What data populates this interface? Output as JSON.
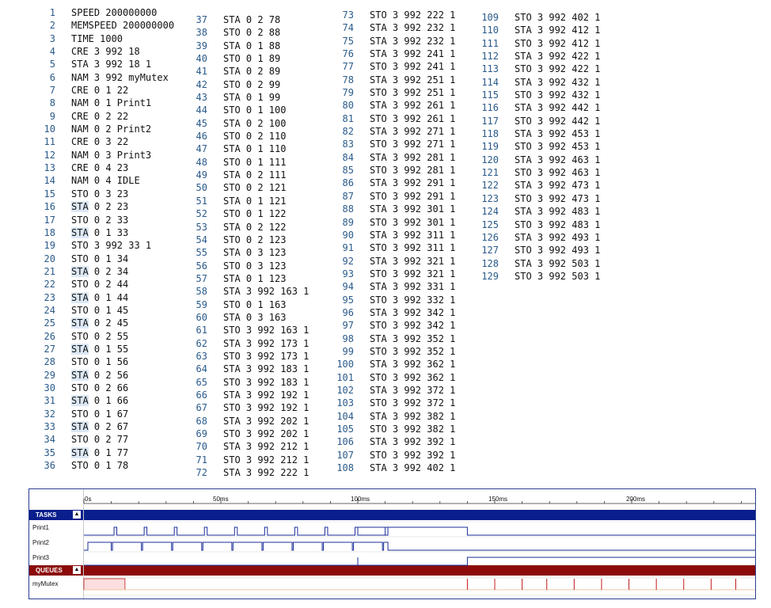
{
  "editor": {
    "lines": [
      {
        "n": "1",
        "t": "SPEED 200000000"
      },
      {
        "n": "2",
        "t": "MEMSPEED 200000000"
      },
      {
        "n": "3",
        "t": "TIME 1000"
      },
      {
        "n": "4",
        "t": "CRE 3 992 18"
      },
      {
        "n": "5",
        "t": "STA 3 992 18 1"
      },
      {
        "n": "6",
        "t": "NAM 3 992 myMutex"
      },
      {
        "n": "7",
        "t": "CRE 0 1 22"
      },
      {
        "n": "8",
        "t": "NAM 0 1 Print1"
      },
      {
        "n": "9",
        "t": "CRE 0 2 22"
      },
      {
        "n": "10",
        "t": "NAM 0 2 Print2"
      },
      {
        "n": "11",
        "t": "CRE 0 3 22"
      },
      {
        "n": "12",
        "t": "NAM 0 3 Print3"
      },
      {
        "n": "13",
        "t": "CRE 0 4 23"
      },
      {
        "n": "14",
        "t": "NAM 0 4 IDLE"
      },
      {
        "n": "15",
        "t": "STO 0 3 23"
      },
      {
        "n": "16",
        "t": "STA 0 2 23"
      },
      {
        "n": "17",
        "t": "STO 0 2 33"
      },
      {
        "n": "18",
        "t": "STA 0 1 33"
      },
      {
        "n": "19",
        "t": "STO 3 992 33 1"
      },
      {
        "n": "20",
        "t": "STO 0 1 34"
      },
      {
        "n": "21",
        "t": "STA 0 2 34"
      },
      {
        "n": "22",
        "t": "STO 0 2 44"
      },
      {
        "n": "23",
        "t": "STA 0 1 44"
      },
      {
        "n": "24",
        "t": "STO 0 1 45"
      },
      {
        "n": "25",
        "t": "STA 0 2 45"
      },
      {
        "n": "26",
        "t": "STO 0 2 55"
      },
      {
        "n": "27",
        "t": "STA 0 1 55"
      },
      {
        "n": "28",
        "t": "STO 0 1 56"
      },
      {
        "n": "29",
        "t": "STA 0 2 56"
      },
      {
        "n": "30",
        "t": "STO 0 2 66"
      },
      {
        "n": "31",
        "t": "STA 0 1 66"
      },
      {
        "n": "32",
        "t": "STO 0 1 67"
      },
      {
        "n": "33",
        "t": "STA 0 2 67"
      },
      {
        "n": "34",
        "t": "STO 0 2 77"
      },
      {
        "n": "35",
        "t": "STA 0 1 77"
      },
      {
        "n": "36",
        "t": "STO 0 1 78"
      },
      {
        "n": "37",
        "t": "STA 0 2 78"
      },
      {
        "n": "38",
        "t": "STO 0 2 88"
      },
      {
        "n": "39",
        "t": "STA 0 1 88"
      },
      {
        "n": "40",
        "t": "STO 0 1 89"
      },
      {
        "n": "41",
        "t": "STA 0 2 89"
      },
      {
        "n": "42",
        "t": "STO 0 2 99"
      },
      {
        "n": "43",
        "t": "STA 0 1 99"
      },
      {
        "n": "44",
        "t": "STO 0 1 100"
      },
      {
        "n": "45",
        "t": "STA 0 2 100"
      },
      {
        "n": "46",
        "t": "STO 0 2 110"
      },
      {
        "n": "47",
        "t": "STA 0 1 110"
      },
      {
        "n": "48",
        "t": "STO 0 1 111"
      },
      {
        "n": "49",
        "t": "STA 0 2 111"
      },
      {
        "n": "50",
        "t": "STO 0 2 121"
      },
      {
        "n": "51",
        "t": "STA 0 1 121"
      },
      {
        "n": "52",
        "t": "STO 0 1 122"
      },
      {
        "n": "53",
        "t": "STA 0 2 122"
      },
      {
        "n": "54",
        "t": "STO 0 2 123"
      },
      {
        "n": "55",
        "t": "STA 0 3 123"
      },
      {
        "n": "56",
        "t": "STO 0 3 123"
      },
      {
        "n": "57",
        "t": "STA 0 1 123"
      },
      {
        "n": "58",
        "t": "STA 3 992 163 1"
      },
      {
        "n": "59",
        "t": "STO 0 1 163"
      },
      {
        "n": "60",
        "t": "STA 0 3 163"
      },
      {
        "n": "61",
        "t": "STO 3 992 163 1"
      },
      {
        "n": "62",
        "t": "STA 3 992 173 1"
      },
      {
        "n": "63",
        "t": "STO 3 992 173 1"
      },
      {
        "n": "64",
        "t": "STA 3 992 183 1"
      },
      {
        "n": "65",
        "t": "STO 3 992 183 1"
      },
      {
        "n": "66",
        "t": "STA 3 992 192 1"
      },
      {
        "n": "67",
        "t": "STO 3 992 192 1"
      },
      {
        "n": "68",
        "t": "STA 3 992 202 1"
      },
      {
        "n": "69",
        "t": "STO 3 992 202 1"
      },
      {
        "n": "70",
        "t": "STA 3 992 212 1"
      },
      {
        "n": "71",
        "t": "STO 3 992 212 1"
      },
      {
        "n": "72",
        "t": "STA 3 992 222 1"
      },
      {
        "n": "73",
        "t": "STO 3 992 222 1"
      },
      {
        "n": "74",
        "t": "STA 3 992 232 1"
      },
      {
        "n": "75",
        "t": "STA 3 992 232 1"
      },
      {
        "n": "76",
        "t": "STA 3 992 241 1"
      },
      {
        "n": "77",
        "t": "STO 3 992 241 1"
      },
      {
        "n": "78",
        "t": "STA 3 992 251 1"
      },
      {
        "n": "79",
        "t": "STO 3 992 251 1"
      },
      {
        "n": "80",
        "t": "STA 3 992 261 1"
      },
      {
        "n": "81",
        "t": "STO 3 992 261 1"
      },
      {
        "n": "82",
        "t": "STA 3 992 271 1"
      },
      {
        "n": "83",
        "t": "STO 3 992 271 1"
      },
      {
        "n": "84",
        "t": "STA 3 992 281 1"
      },
      {
        "n": "85",
        "t": "STO 3 992 281 1"
      },
      {
        "n": "86",
        "t": "STA 3 992 291 1"
      },
      {
        "n": "87",
        "t": "STO 3 992 291 1"
      },
      {
        "n": "88",
        "t": "STA 3 992 301 1"
      },
      {
        "n": "89",
        "t": "STO 3 992 301 1"
      },
      {
        "n": "90",
        "t": "STA 3 992 311 1"
      },
      {
        "n": "91",
        "t": "STO 3 992 311 1"
      },
      {
        "n": "92",
        "t": "STA 3 992 321 1"
      },
      {
        "n": "93",
        "t": "STO 3 992 321 1"
      },
      {
        "n": "94",
        "t": "STA 3 992 331 1"
      },
      {
        "n": "95",
        "t": "STO 3 992 332 1"
      },
      {
        "n": "96",
        "t": "STA 3 992 342 1"
      },
      {
        "n": "97",
        "t": "STO 3 992 342 1"
      },
      {
        "n": "98",
        "t": "STA 3 992 352 1"
      },
      {
        "n": "99",
        "t": "STO 3 992 352 1"
      },
      {
        "n": "100",
        "t": "STA 3 992 362 1"
      },
      {
        "n": "101",
        "t": "STO 3 992 362 1"
      },
      {
        "n": "102",
        "t": "STA 3 992 372 1"
      },
      {
        "n": "103",
        "t": "STO 3 992 372 1"
      },
      {
        "n": "104",
        "t": "STA 3 992 382 1"
      },
      {
        "n": "105",
        "t": "STO 3 992 382 1"
      },
      {
        "n": "106",
        "t": "STA 3 992 392 1"
      },
      {
        "n": "107",
        "t": "STO 3 992 392 1"
      },
      {
        "n": "108",
        "t": "STA 3 992 402 1"
      },
      {
        "n": "109",
        "t": "STO 3 992 402 1"
      },
      {
        "n": "110",
        "t": "STA 3 992 412 1"
      },
      {
        "n": "111",
        "t": "STO 3 992 412 1"
      },
      {
        "n": "112",
        "t": "STA 3 992 422 1"
      },
      {
        "n": "113",
        "t": "STO 3 992 422 1"
      },
      {
        "n": "114",
        "t": "STA 3 992 432 1"
      },
      {
        "n": "115",
        "t": "STO 3 992 432 1"
      },
      {
        "n": "116",
        "t": "STA 3 992 442 1"
      },
      {
        "n": "117",
        "t": "STO 3 992 442 1"
      },
      {
        "n": "118",
        "t": "STA 3 992 453 1"
      },
      {
        "n": "119",
        "t": "STO 3 992 453 1"
      },
      {
        "n": "120",
        "t": "STA 3 992 463 1"
      },
      {
        "n": "121",
        "t": "STO 3 992 463 1"
      },
      {
        "n": "122",
        "t": "STA 3 992 473 1"
      },
      {
        "n": "123",
        "t": "STO 3 992 473 1"
      },
      {
        "n": "124",
        "t": "STA 3 992 483 1"
      },
      {
        "n": "125",
        "t": "STO 3 992 483 1"
      },
      {
        "n": "126",
        "t": "STA 3 992 493 1"
      },
      {
        "n": "127",
        "t": "STO 3 992 493 1"
      },
      {
        "n": "128",
        "t": "STA 3 992 503 1"
      },
      {
        "n": "129",
        "t": "STO 3 992 503 1"
      }
    ]
  },
  "timeline": {
    "axis_labels": [
      "0s",
      "50ms",
      "100ms",
      "150ms",
      "200ms"
    ],
    "sections": {
      "tasks": "TASKS",
      "queues": "QUEUES"
    },
    "rows": {
      "print1": "Print1",
      "print2": "Print2",
      "print3": "Print3",
      "mutex": "myMutex"
    },
    "colors": {
      "tasks_bar": "#0a1e8c",
      "queues_bar": "#8b0a0a",
      "trace": "#1a2d9a",
      "mutex_mark": "#c01a1a",
      "mutex_fill": "#fbdede"
    }
  }
}
